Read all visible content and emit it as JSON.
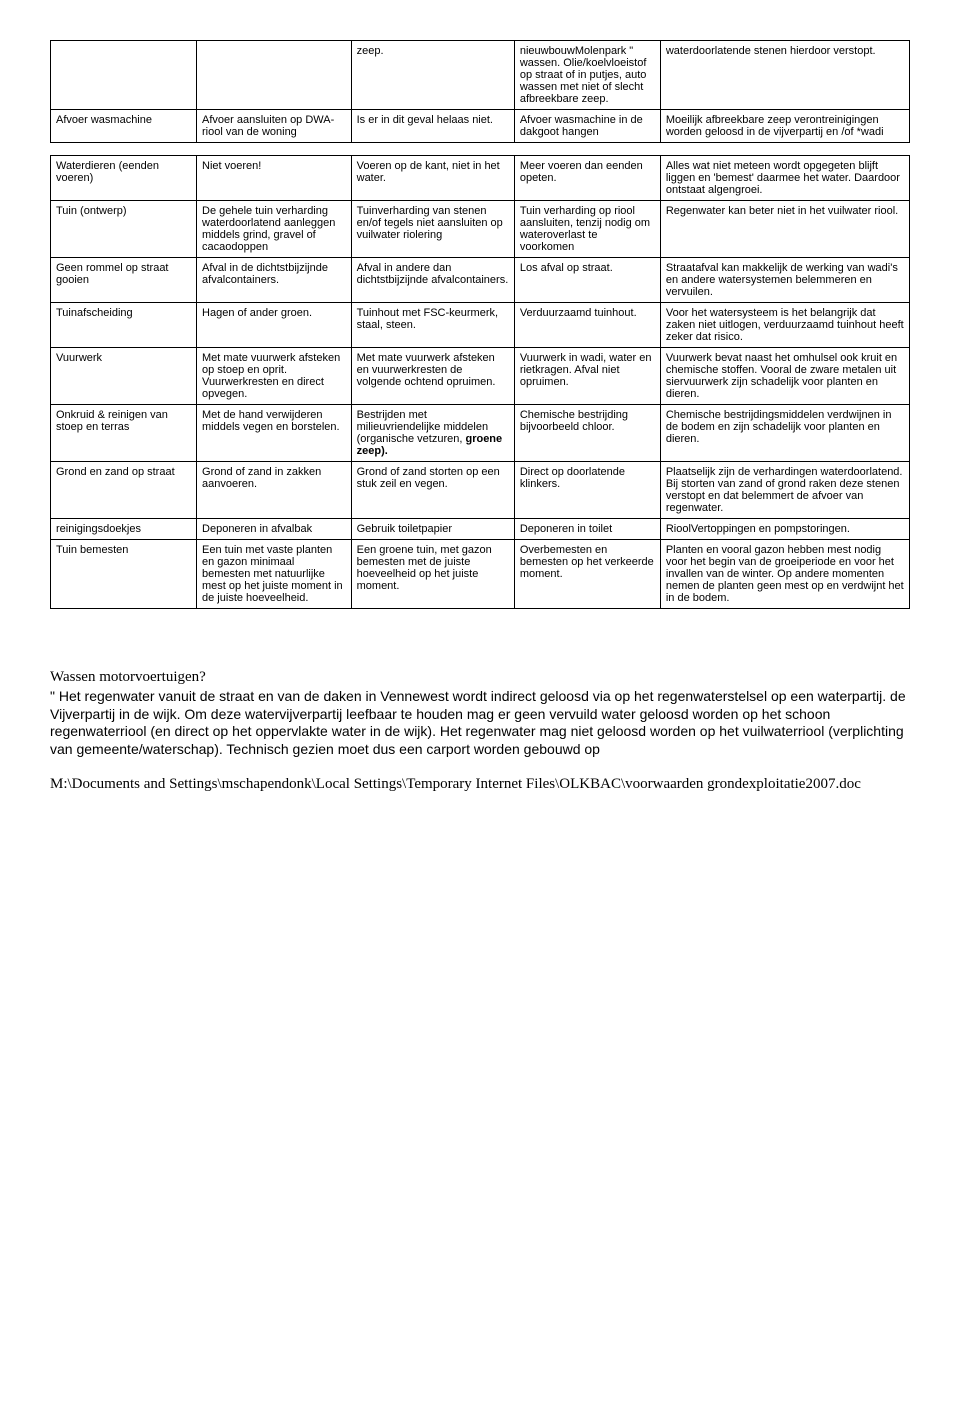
{
  "rows1": [
    {
      "c1": "",
      "c2": "",
      "c3": "zeep.",
      "c4": "nieuwbouwMolenpark \" wassen. Olie/koelvloeistof op straat of in putjes, auto wassen met niet of slecht afbreekbare zeep.",
      "c5": "waterdoorlatende stenen hierdoor verstopt."
    },
    {
      "c1": "Afvoer wasmachine",
      "c2": "Afvoer aansluiten op DWA-riool van de woning",
      "c3": "Is er in dit geval helaas niet.",
      "c4": "Afvoer wasmachine in de dakgoot hangen",
      "c5": "Moeilijk afbreekbare zeep verontreinigingen worden geloosd in de vijverpartij en /of *wadi"
    }
  ],
  "rows2": [
    {
      "c1": "Waterdieren (eenden voeren)",
      "c2": "Niet voeren!",
      "c3": "Voeren op de kant, niet in het water.",
      "c4": "Meer voeren dan eenden opeten.",
      "c5": "Alles wat niet meteen wordt opgegeten blijft liggen en 'bemest' daarmee het water. Daardoor ontstaat algengroei."
    },
    {
      "c1": "Tuin (ontwerp)",
      "c2": "De gehele tuin verharding waterdoorlatend aanleggen middels grind, gravel of cacaodoppen",
      "c3": "Tuinverharding van stenen en/of tegels niet aansluiten op vuilwater riolering",
      "c4": "Tuin verharding op riool aansluiten, tenzij nodig om wateroverlast te voorkomen",
      "c5": "Regenwater kan beter niet in het vuilwater riool."
    },
    {
      "c1": "Geen rommel op straat gooien",
      "c2": "Afval in de dichtstbijzijnde afvalcontainers.",
      "c3": "Afval in andere dan dichtstbijzijnde afvalcontainers.",
      "c4": "Los afval op straat.",
      "c5": "Straatafval kan makkelijk de werking van wadi's en andere watersystemen belemmeren en vervuilen."
    },
    {
      "c1": "Tuinafscheiding",
      "c2": "Hagen of ander groen.",
      "c3": "Tuinhout met FSC-keurmerk, staal, steen.",
      "c4": "Verduurzaamd tuinhout.",
      "c5": "Voor het watersysteem is het belangrijk dat zaken niet uitlogen, verduurzaamd tuinhout heeft zeker dat risico."
    },
    {
      "c1": "Vuurwerk",
      "c2": "Met mate vuurwerk afsteken op stoep en oprit. Vuurwerkresten en direct opvegen.",
      "c3": "Met mate vuurwerk afsteken en vuurwerkresten de volgende ochtend opruimen.",
      "c4": "Vuurwerk in wadi, water en rietkragen. Afval niet opruimen.",
      "c5": "Vuurwerk bevat naast het omhulsel ook kruit en chemische stoffen. Vooral de zware metalen uit siervuurwerk zijn schadelijk voor planten en dieren."
    },
    {
      "c1": "Onkruid & reinigen van stoep en terras",
      "c2": "Met de hand verwijderen middels vegen en borstelen.",
      "c3_html": "Bestrijden met milieuvriendelijke middelen (organische vetzuren, <b>groene zeep).</b>",
      "c4": "Chemische bestrijding bijvoorbeeld chloor.",
      "c5": "Chemische bestrijdingsmiddelen verdwijnen in de bodem en zijn schadelijk voor planten en dieren."
    },
    {
      "c1": "Grond en zand op straat",
      "c2": "Grond of zand in zakken aanvoeren.",
      "c3": "Grond of zand storten op een stuk zeil en vegen.",
      "c4": "Direct op doorlatende klinkers.",
      "c5": "Plaatselijk zijn de verhardingen waterdoorlatend. Bij storten van zand of grond raken deze stenen verstopt en dat belemmert de afvoer van regenwater."
    },
    {
      "c1": "reinigingsdoekjes",
      "c2": "Deponeren in afvalbak",
      "c3": "Gebruik toiletpapier",
      "c4": "Deponeren in toilet",
      "c5": "RioolVertoppingen en pompstoringen."
    },
    {
      "c1": "Tuin bemesten",
      "c2": "Een tuin met vaste planten en gazon minimaal bemesten met natuurlijke mest op het juiste moment in de juiste hoeveelheid.",
      "c3": "Een groene tuin, met gazon bemesten met de juiste hoeveelheid op het juiste moment.",
      "c4": "Overbemesten en bemesten op het verkeerde moment.",
      "c5": "Planten en vooral gazon hebben mest nodig voor het begin van de groeiperiode en voor het invallen van de winter. Op andere momenten nemen de planten geen mest op en verdwijnt het in de bodem."
    }
  ],
  "paragraph": {
    "title": "Wassen motorvoertuigen?",
    "body": "\" Het regenwater vanuit de straat en van de daken in Vennewest wordt indirect geloosd via op het regenwaterstelsel op een waterpartij. de Vijverpartij in de wijk. Om deze watervijverpartij leefbaar te houden mag er geen vervuild water geloosd worden op het schoon regenwaterriool (en direct op het oppervlakte water in de wijk). Het regenwater mag niet geloosd worden op het vuilwaterriool (verplichting van gemeente/waterschap). Technisch gezien moet dus een carport worden gebouwd op"
  },
  "footer": "M:\\Documents and Settings\\mschapendonk\\Local Settings\\Temporary Internet Files\\OLKBAC\\voorwaarden grondexploitatie2007.doc"
}
